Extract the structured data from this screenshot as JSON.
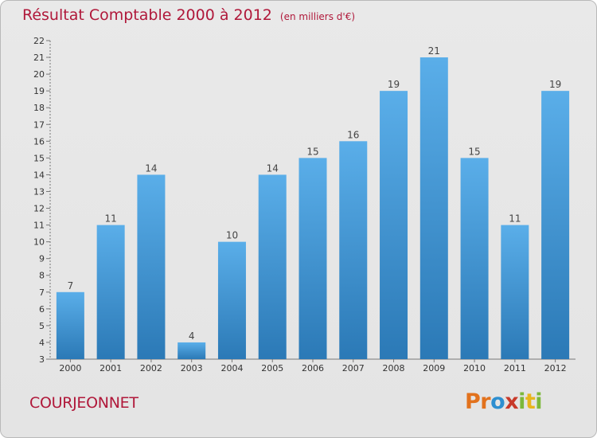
{
  "title": "Résultat Comptable 2000 à 2012",
  "subtitle": "(en milliers d'€)",
  "commune": "COURJEONNET",
  "brand": {
    "letters": [
      {
        "ch": "P",
        "color": "#e2721d"
      },
      {
        "ch": "r",
        "color": "#e2721d"
      },
      {
        "ch": "o",
        "color": "#2e8fd0"
      },
      {
        "ch": "x",
        "color": "#c83a2a"
      },
      {
        "ch": "i",
        "color": "#7cb83a"
      },
      {
        "ch": "t",
        "color": "#e8b51c"
      },
      {
        "ch": "i",
        "color": "#7cb83a"
      }
    ]
  },
  "colors": {
    "title": "#b0183a",
    "bar_top": "#5aaee9",
    "bar_bottom": "#2b79b6",
    "axis_text": "#333333"
  },
  "chart_data": {
    "type": "bar",
    "title": "Résultat Comptable 2000 à 2012",
    "subtitle": "(en milliers d'€)",
    "categories": [
      "2000",
      "2001",
      "2002",
      "2003",
      "2004",
      "2005",
      "2006",
      "2007",
      "2008",
      "2009",
      "2010",
      "2011",
      "2012"
    ],
    "values": [
      7,
      11,
      14,
      4,
      10,
      14,
      15,
      16,
      19,
      21,
      15,
      11,
      19
    ],
    "ylim": [
      3,
      22
    ],
    "yticks": [
      3,
      4,
      5,
      6,
      7,
      8,
      9,
      10,
      11,
      12,
      13,
      14,
      15,
      16,
      17,
      18,
      19,
      20,
      21,
      22
    ],
    "grid": false,
    "data_labels": true
  }
}
